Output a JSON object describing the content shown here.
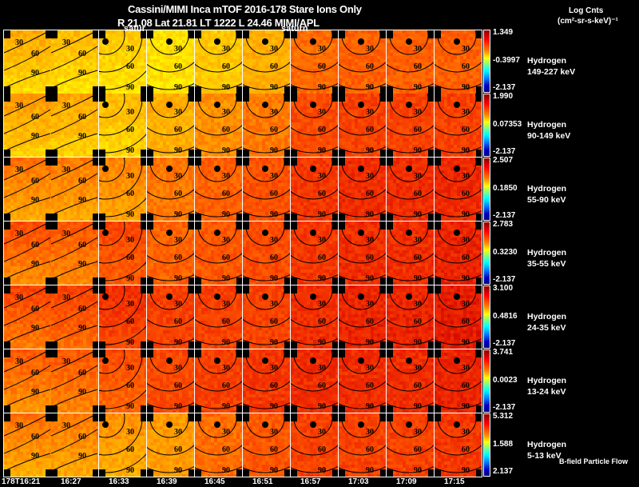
{
  "header": {
    "title_line1": "Cassini/MIMI Inca mTOF  2016-178   Stare   Ions Only",
    "title_line2": "R         21.08 Lat 21.81 LT 1222 L           24.46  MIMI/APL",
    "units_line1": "Log Cnts",
    "units_line2": "(cm²-sr-s-keV)⁻¹",
    "saturn_labels": [
      "satur",
      "saturn"
    ]
  },
  "footer": {
    "bfield_label": "B-field Particle Flow"
  },
  "colors": {
    "background": "#000000",
    "grid_lines": "#ffffff",
    "contours": "#000000"
  },
  "chart_data": {
    "type": "heatmap",
    "title": "Cassini/MIMI Inca mTOF 2016-178 Stare Ions Only",
    "xlabel": "Time",
    "x": [
      "178T16:21",
      "16:27",
      "16:33",
      "16:39",
      "16:45",
      "16:51",
      "16:57",
      "17:03",
      "17:09",
      "17:15"
    ],
    "contour_labels": [
      "30",
      "60",
      "90"
    ],
    "series": [
      {
        "species": "Hydrogen",
        "energy": "149-227 keV",
        "cmax": "1.349",
        "cmid": "-0.3997",
        "cmin": "-2.137"
      },
      {
        "species": "Hydrogen",
        "energy": "90-149 keV",
        "cmax": "1.990",
        "cmid": "0.07353",
        "cmin": "-2.137"
      },
      {
        "species": "Hydrogen",
        "energy": "55-90 keV",
        "cmax": "2.507",
        "cmid": "0.1850",
        "cmin": "-2.137"
      },
      {
        "species": "Hydrogen",
        "energy": "35-55 keV",
        "cmax": "2.783",
        "cmid": "0.3230",
        "cmin": "-2.137"
      },
      {
        "species": "Hydrogen",
        "energy": "24-35 keV",
        "cmax": "3.100",
        "cmid": "0.4816",
        "cmin": "-2.137"
      },
      {
        "species": "Hydrogen",
        "energy": "13-24 keV",
        "cmax": "3.741",
        "cmid": "0.0023",
        "cmin": "-2.137"
      },
      {
        "species": "Hydrogen",
        "energy": "5-13 keV",
        "cmax": "5.312",
        "cmid": "1.588",
        "cmin": "2.137"
      }
    ],
    "intensity_level": [
      [
        0.62,
        0.58,
        0.55,
        0.5,
        0.55,
        0.6,
        0.72,
        0.74,
        0.74,
        0.74
      ],
      [
        0.65,
        0.62,
        0.58,
        0.6,
        0.66,
        0.7,
        0.78,
        0.8,
        0.8,
        0.8
      ],
      [
        0.72,
        0.7,
        0.68,
        0.7,
        0.74,
        0.77,
        0.82,
        0.84,
        0.84,
        0.85
      ],
      [
        0.78,
        0.76,
        0.8,
        0.74,
        0.76,
        0.78,
        0.82,
        0.84,
        0.84,
        0.86
      ],
      [
        0.8,
        0.8,
        0.84,
        0.8,
        0.8,
        0.8,
        0.84,
        0.86,
        0.86,
        0.88
      ],
      [
        0.76,
        0.76,
        0.78,
        0.78,
        0.8,
        0.82,
        0.84,
        0.84,
        0.84,
        0.86
      ],
      [
        0.72,
        0.7,
        0.66,
        0.64,
        0.72,
        0.76,
        0.8,
        0.8,
        0.8,
        0.82
      ]
    ]
  }
}
